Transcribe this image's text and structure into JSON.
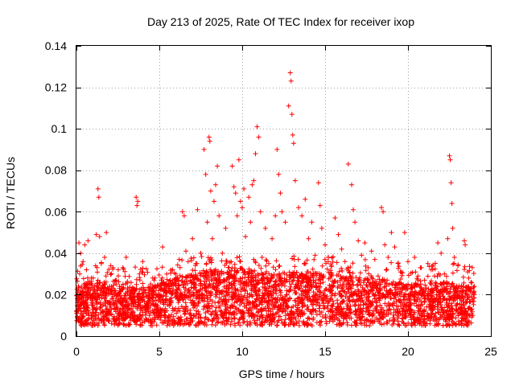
{
  "chart_data": {
    "type": "scatter",
    "title": "Day 213 of 2025, Rate Of TEC Index for receiver ixop",
    "xlabel": "GPS time / hours",
    "ylabel": "ROTI / TECUs",
    "xlim": [
      0,
      25
    ],
    "ylim": [
      0,
      0.14
    ],
    "xticks": [
      0,
      5,
      10,
      15,
      20,
      25
    ],
    "xtick_labels": [
      "0",
      "5",
      "10",
      "15",
      "20",
      "25"
    ],
    "yticks": [
      0,
      0.02,
      0.04,
      0.06,
      0.08,
      0.1,
      0.12,
      0.14
    ],
    "ytick_labels": [
      "0",
      "0.02",
      "0.04",
      "0.06",
      "0.08",
      "0.1",
      "0.12",
      "0.14"
    ],
    "grid": true,
    "marker": "plus",
    "color": "#ff0000",
    "series": [
      {
        "name": "",
        "points": [
          [
            0.0,
            0.012
          ],
          [
            0.05,
            0.018
          ],
          [
            0.1,
            0.008
          ],
          [
            0.15,
            0.045
          ],
          [
            0.2,
            0.03
          ],
          [
            0.25,
            0.04
          ],
          [
            0.3,
            0.015
          ],
          [
            0.4,
            0.036
          ],
          [
            0.5,
            0.044
          ],
          [
            0.6,
            0.032
          ],
          [
            0.7,
            0.046
          ],
          [
            0.8,
            0.02
          ],
          [
            0.9,
            0.028
          ],
          [
            1.0,
            0.013
          ],
          [
            1.1,
            0.022
          ],
          [
            1.2,
            0.049
          ],
          [
            1.3,
            0.071
          ],
          [
            1.35,
            0.067
          ],
          [
            1.4,
            0.048
          ],
          [
            1.5,
            0.035
          ],
          [
            1.6,
            0.015
          ],
          [
            1.7,
            0.038
          ],
          [
            1.8,
            0.05
          ],
          [
            1.9,
            0.011
          ],
          [
            2.0,
            0.024
          ],
          [
            2.2,
            0.018
          ],
          [
            2.4,
            0.027
          ],
          [
            2.6,
            0.012
          ],
          [
            2.8,
            0.033
          ],
          [
            3.0,
            0.038
          ],
          [
            3.2,
            0.02
          ],
          [
            3.4,
            0.017
          ],
          [
            3.6,
            0.067
          ],
          [
            3.65,
            0.063
          ],
          [
            3.7,
            0.065
          ],
          [
            3.8,
            0.03
          ],
          [
            4.0,
            0.036
          ],
          [
            4.2,
            0.015
          ],
          [
            4.4,
            0.022
          ],
          [
            4.6,
            0.028
          ],
          [
            4.8,
            0.013
          ],
          [
            5.0,
            0.02
          ],
          [
            5.2,
            0.043
          ],
          [
            5.4,
            0.025
          ],
          [
            5.6,
            0.017
          ],
          [
            5.8,
            0.032
          ],
          [
            6.0,
            0.028
          ],
          [
            6.2,
            0.037
          ],
          [
            6.4,
            0.06
          ],
          [
            6.5,
            0.058
          ],
          [
            6.6,
            0.041
          ],
          [
            6.8,
            0.022
          ],
          [
            7.0,
            0.047
          ],
          [
            7.2,
            0.035
          ],
          [
            7.3,
            0.061
          ],
          [
            7.5,
            0.04
          ],
          [
            7.7,
            0.09
          ],
          [
            7.8,
            0.078
          ],
          [
            7.9,
            0.055
          ],
          [
            8.0,
            0.096
          ],
          [
            8.05,
            0.094
          ],
          [
            8.1,
            0.07
          ],
          [
            8.2,
            0.047
          ],
          [
            8.3,
            0.065
          ],
          [
            8.4,
            0.073
          ],
          [
            8.5,
            0.082
          ],
          [
            8.6,
            0.058
          ],
          [
            8.8,
            0.04
          ],
          [
            9.0,
            0.052
          ],
          [
            9.2,
            0.033
          ],
          [
            9.4,
            0.082
          ],
          [
            9.5,
            0.072
          ],
          [
            9.6,
            0.069
          ],
          [
            9.7,
            0.058
          ],
          [
            9.8,
            0.085
          ],
          [
            9.9,
            0.065
          ],
          [
            10.0,
            0.062
          ],
          [
            10.1,
            0.071
          ],
          [
            10.2,
            0.048
          ],
          [
            10.4,
            0.067
          ],
          [
            10.5,
            0.055
          ],
          [
            10.6,
            0.073
          ],
          [
            10.7,
            0.075
          ],
          [
            10.8,
            0.088
          ],
          [
            10.9,
            0.101
          ],
          [
            11.0,
            0.096
          ],
          [
            11.1,
            0.06
          ],
          [
            11.2,
            0.038
          ],
          [
            11.4,
            0.052
          ],
          [
            11.6,
            0.035
          ],
          [
            11.8,
            0.047
          ],
          [
            12.0,
            0.058
          ],
          [
            12.1,
            0.09
          ],
          [
            12.2,
            0.078
          ],
          [
            12.3,
            0.069
          ],
          [
            12.4,
            0.06
          ],
          [
            12.6,
            0.055
          ],
          [
            12.8,
            0.111
          ],
          [
            12.9,
            0.127
          ],
          [
            12.95,
            0.123
          ],
          [
            13.0,
            0.107
          ],
          [
            13.05,
            0.097
          ],
          [
            13.1,
            0.093
          ],
          [
            13.2,
            0.075
          ],
          [
            13.4,
            0.062
          ],
          [
            13.6,
            0.058
          ],
          [
            13.8,
            0.066
          ],
          [
            14.0,
            0.047
          ],
          [
            14.2,
            0.055
          ],
          [
            14.4,
            0.039
          ],
          [
            14.6,
            0.074
          ],
          [
            14.7,
            0.063
          ],
          [
            14.8,
            0.052
          ],
          [
            15.0,
            0.044
          ],
          [
            15.2,
            0.038
          ],
          [
            15.4,
            0.029
          ],
          [
            15.6,
            0.057
          ],
          [
            15.8,
            0.049
          ],
          [
            16.0,
            0.042
          ],
          [
            16.2,
            0.036
          ],
          [
            16.4,
            0.083
          ],
          [
            16.6,
            0.073
          ],
          [
            16.7,
            0.061
          ],
          [
            16.8,
            0.055
          ],
          [
            17.0,
            0.046
          ],
          [
            17.2,
            0.039
          ],
          [
            17.4,
            0.045
          ],
          [
            17.6,
            0.033
          ],
          [
            17.8,
            0.041
          ],
          [
            18.0,
            0.037
          ],
          [
            18.2,
            0.029
          ],
          [
            18.4,
            0.062
          ],
          [
            18.5,
            0.06
          ],
          [
            18.6,
            0.044
          ],
          [
            18.8,
            0.038
          ],
          [
            19.0,
            0.05
          ],
          [
            19.2,
            0.043
          ],
          [
            19.4,
            0.035
          ],
          [
            19.6,
            0.031
          ],
          [
            19.8,
            0.05
          ],
          [
            20.0,
            0.036
          ],
          [
            20.2,
            0.024
          ],
          [
            20.4,
            0.038
          ],
          [
            20.6,
            0.029
          ],
          [
            20.8,
            0.033
          ],
          [
            21.0,
            0.027
          ],
          [
            21.2,
            0.035
          ],
          [
            21.4,
            0.032
          ],
          [
            21.6,
            0.029
          ],
          [
            21.8,
            0.045
          ],
          [
            22.0,
            0.04
          ],
          [
            22.2,
            0.03
          ],
          [
            22.4,
            0.047
          ],
          [
            22.5,
            0.087
          ],
          [
            22.55,
            0.085
          ],
          [
            22.6,
            0.074
          ],
          [
            22.65,
            0.064
          ],
          [
            22.7,
            0.052
          ],
          [
            22.8,
            0.038
          ],
          [
            23.0,
            0.022
          ],
          [
            23.2,
            0.018
          ],
          [
            23.4,
            0.046
          ],
          [
            23.45,
            0.044
          ],
          [
            23.6,
            0.031
          ],
          [
            23.8,
            0.026
          ],
          [
            24.0,
            0.024
          ]
        ],
        "band_mean": [
          [
            0,
            0.013
          ],
          [
            1,
            0.014
          ],
          [
            2,
            0.013
          ],
          [
            3,
            0.012
          ],
          [
            4,
            0.012
          ],
          [
            5,
            0.013
          ],
          [
            6,
            0.015
          ],
          [
            7,
            0.016
          ],
          [
            8,
            0.018
          ],
          [
            9,
            0.017
          ],
          [
            10,
            0.018
          ],
          [
            11,
            0.017
          ],
          [
            12,
            0.016
          ],
          [
            13,
            0.017
          ],
          [
            14,
            0.016
          ],
          [
            15,
            0.017
          ],
          [
            16,
            0.016
          ],
          [
            17,
            0.015
          ],
          [
            18,
            0.015
          ],
          [
            19,
            0.014
          ],
          [
            20,
            0.013
          ],
          [
            21,
            0.013
          ],
          [
            22,
            0.014
          ],
          [
            23,
            0.013
          ],
          [
            24,
            0.012
          ]
        ]
      }
    ]
  }
}
